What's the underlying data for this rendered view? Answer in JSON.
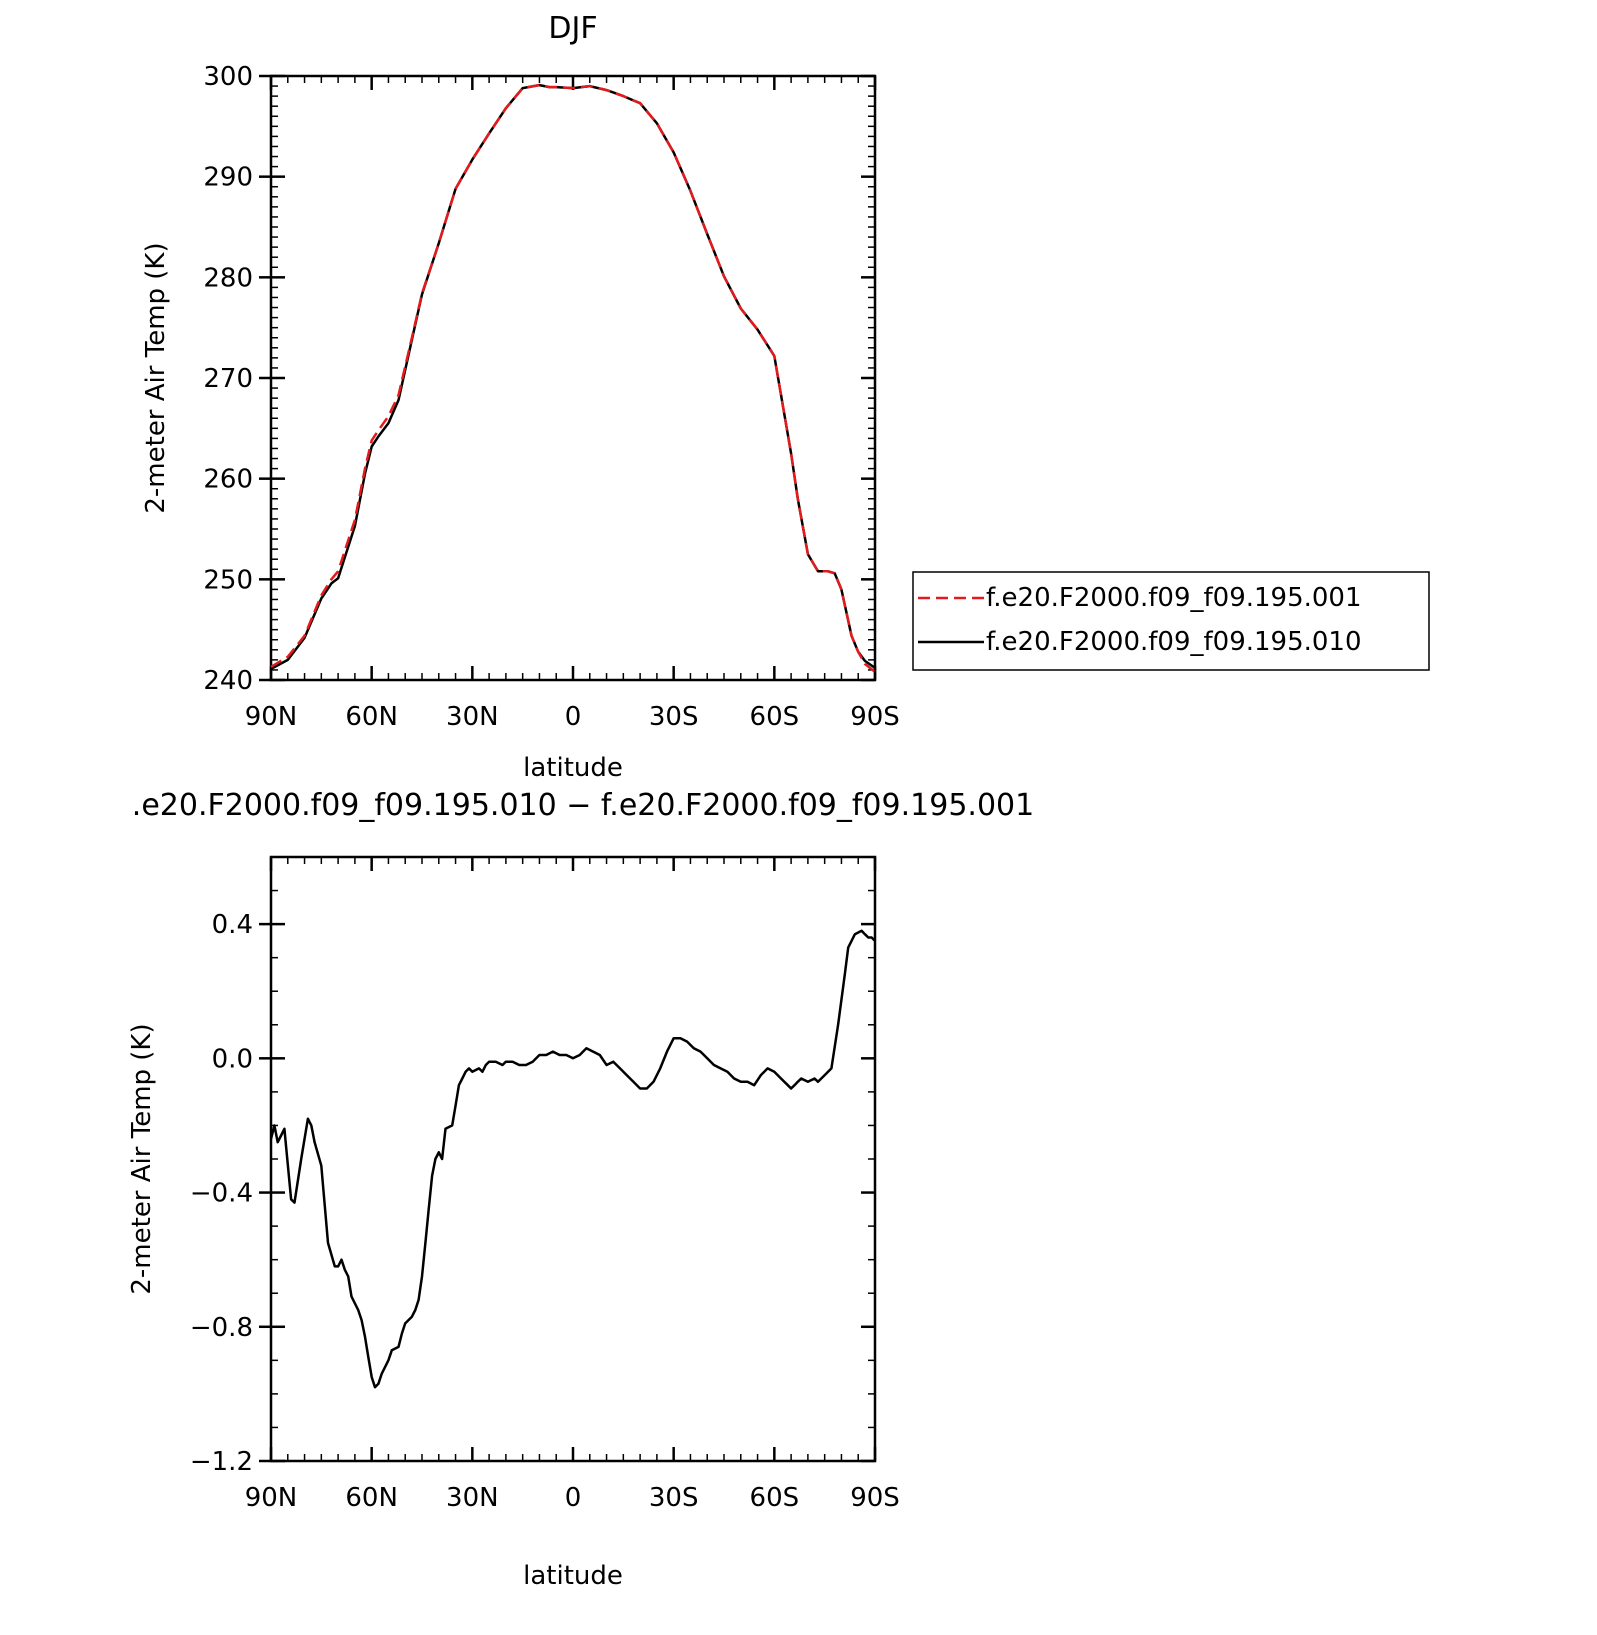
{
  "chart_data": [
    {
      "type": "line",
      "title": "DJF",
      "xlabel": "latitude",
      "ylabel": "2-meter Air Temp (K)",
      "xlim": [
        90,
        -90
      ],
      "ylim": [
        240,
        300
      ],
      "x_ticks": [
        90,
        60,
        30,
        0,
        -30,
        -60,
        -90
      ],
      "x_tick_labels": [
        "90N",
        "60N",
        "30N",
        "0",
        "30S",
        "60S",
        "90S"
      ],
      "y_ticks": [
        240,
        250,
        260,
        270,
        280,
        290,
        300
      ],
      "y_tick_labels": [
        "240",
        "250",
        "260",
        "270",
        "280",
        "290",
        "300"
      ],
      "legend_position": "right",
      "series": [
        {
          "name": "f.e20.F2000.f09_f09.195.001",
          "color": "#e41a1c",
          "dash": "dashed",
          "x": [
            90,
            85,
            80,
            75,
            72,
            70,
            65,
            62,
            60,
            58,
            55,
            52,
            48,
            45,
            40,
            35,
            30,
            25,
            20,
            15,
            10,
            7,
            5,
            0,
            -5,
            -10,
            -15,
            -20,
            -25,
            -30,
            -35,
            -40,
            -45,
            -50,
            -55,
            -60,
            -65,
            -67,
            -70,
            -73,
            -76,
            -78,
            -80,
            -83,
            -85,
            -87,
            -90
          ],
          "y": [
            241.3,
            242.3,
            244.4,
            248.4,
            250.0,
            250.8,
            255.9,
            261.0,
            263.8,
            264.8,
            266.2,
            268.3,
            274.0,
            278.4,
            283.4,
            288.8,
            291.7,
            294.3,
            296.8,
            298.8,
            299.1,
            298.9,
            298.9,
            298.8,
            299.0,
            298.6,
            298.0,
            297.3,
            295.3,
            292.4,
            288.6,
            284.3,
            280.1,
            276.9,
            274.8,
            272.2,
            262.5,
            258.0,
            252.5,
            250.8,
            250.8,
            250.6,
            249.0,
            244.4,
            242.8,
            241.6,
            240.8
          ]
        },
        {
          "name": "f.e20.F2000.f09_f09.195.010",
          "color": "#000000",
          "dash": "solid",
          "x": [
            90,
            85,
            80,
            75,
            72,
            70,
            65,
            62,
            60,
            58,
            55,
            52,
            48,
            45,
            40,
            35,
            30,
            25,
            20,
            15,
            10,
            7,
            5,
            0,
            -5,
            -10,
            -15,
            -20,
            -25,
            -30,
            -35,
            -40,
            -45,
            -50,
            -55,
            -60,
            -65,
            -67,
            -70,
            -73,
            -76,
            -78,
            -80,
            -83,
            -85,
            -87,
            -90
          ],
          "y": [
            241.1,
            242.0,
            244.2,
            248.1,
            249.6,
            250.1,
            255.3,
            260.5,
            263.2,
            264.2,
            265.5,
            267.8,
            273.8,
            278.3,
            283.4,
            288.8,
            291.7,
            294.3,
            296.8,
            298.8,
            299.1,
            298.9,
            298.9,
            298.8,
            299.0,
            298.6,
            298.0,
            297.3,
            295.3,
            292.4,
            288.6,
            284.3,
            280.1,
            276.9,
            274.8,
            272.2,
            262.5,
            258.0,
            252.5,
            250.8,
            250.8,
            250.6,
            249.0,
            244.4,
            242.8,
            241.9,
            241.2
          ]
        }
      ]
    },
    {
      "type": "line",
      "title": ".e20.F2000.f09_f09.195.010 − f.e20.F2000.f09_f09.195.001",
      "xlabel": "latitude",
      "ylabel": "2-meter Air Temp (K)",
      "xlim": [
        90,
        -90
      ],
      "ylim": [
        -1.2,
        0.6
      ],
      "x_ticks": [
        90,
        60,
        30,
        0,
        -30,
        -60,
        -90
      ],
      "x_tick_labels": [
        "90N",
        "60N",
        "30N",
        "0",
        "30S",
        "60S",
        "90S"
      ],
      "y_ticks": [
        0.4,
        0.0,
        -0.4,
        -0.8,
        -1.2
      ],
      "y_tick_labels": [
        "0.4",
        "0.0",
        "−0.4",
        "−0.8",
        "−1.2"
      ],
      "series": [
        {
          "color": "#000000",
          "dash": "solid",
          "x": [
            90,
            89,
            88,
            87,
            86,
            84,
            83,
            81,
            79,
            78,
            77,
            75,
            73,
            71,
            70,
            69,
            68,
            67,
            66,
            64,
            63,
            62,
            61,
            60,
            59,
            58,
            57,
            55,
            54,
            52,
            51,
            50,
            48,
            47,
            46,
            45,
            44,
            43,
            42,
            41,
            40,
            39,
            38,
            36,
            35,
            34,
            33,
            32,
            31,
            30,
            28,
            27,
            26,
            25,
            23,
            21,
            20,
            18,
            16,
            14,
            12,
            10,
            8,
            6,
            4,
            2,
            0,
            -2,
            -4,
            -6,
            -8,
            -10,
            -12,
            -14,
            -16,
            -18,
            -20,
            -22,
            -24,
            -26,
            -28,
            -30,
            -32,
            -34,
            -36,
            -38,
            -40,
            -42,
            -44,
            -46,
            -48,
            -50,
            -52,
            -54,
            -56,
            -58,
            -60,
            -62,
            -64,
            -65,
            -66,
            -67,
            -68,
            -70,
            -72,
            -73,
            -75,
            -77,
            -79,
            -81,
            -82,
            -84,
            -86,
            -87,
            -88,
            -89,
            -90
          ],
          "y": [
            -0.24,
            -0.2,
            -0.25,
            -0.23,
            -0.21,
            -0.42,
            -0.43,
            -0.3,
            -0.18,
            -0.2,
            -0.25,
            -0.32,
            -0.55,
            -0.62,
            -0.62,
            -0.6,
            -0.63,
            -0.65,
            -0.71,
            -0.75,
            -0.78,
            -0.83,
            -0.89,
            -0.95,
            -0.98,
            -0.97,
            -0.94,
            -0.9,
            -0.87,
            -0.86,
            -0.82,
            -0.79,
            -0.77,
            -0.75,
            -0.72,
            -0.65,
            -0.55,
            -0.45,
            -0.35,
            -0.3,
            -0.28,
            -0.3,
            -0.21,
            -0.2,
            -0.14,
            -0.08,
            -0.06,
            -0.04,
            -0.03,
            -0.04,
            -0.03,
            -0.04,
            -0.02,
            -0.01,
            -0.01,
            -0.02,
            -0.01,
            -0.01,
            -0.02,
            -0.02,
            -0.01,
            0.01,
            0.01,
            0.02,
            0.01,
            0.01,
            0.0,
            0.01,
            0.03,
            0.02,
            0.01,
            -0.02,
            -0.01,
            -0.03,
            -0.05,
            -0.07,
            -0.09,
            -0.09,
            -0.07,
            -0.03,
            0.02,
            0.06,
            0.06,
            0.05,
            0.03,
            0.02,
            0.0,
            -0.02,
            -0.03,
            -0.04,
            -0.06,
            -0.07,
            -0.07,
            -0.08,
            -0.05,
            -0.03,
            -0.04,
            -0.06,
            -0.08,
            -0.09,
            -0.08,
            -0.07,
            -0.06,
            -0.07,
            -0.06,
            -0.07,
            -0.05,
            -0.03,
            0.1,
            0.25,
            0.33,
            0.37,
            0.38,
            0.37,
            0.36,
            0.36,
            0.35
          ]
        }
      ]
    }
  ]
}
